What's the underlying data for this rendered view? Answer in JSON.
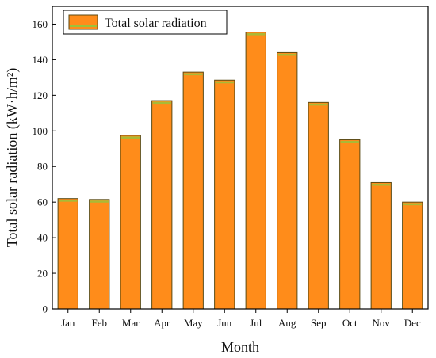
{
  "chart_data": {
    "type": "bar",
    "categories": [
      "Jan",
      "Feb",
      "Mar",
      "Apr",
      "May",
      "Jun",
      "Jul",
      "Aug",
      "Sep",
      "Oct",
      "Nov",
      "Dec"
    ],
    "series": [
      {
        "name": "Total solar radiation",
        "values": [
          62,
          61.5,
          97.5,
          117,
          133,
          128.5,
          155.5,
          144,
          116,
          95,
          71,
          60
        ]
      }
    ],
    "xlabel": "Month",
    "ylabel": "Total solar radiation (kW·h/m²)",
    "ylim": [
      0,
      170
    ],
    "yticks": [
      0,
      20,
      40,
      60,
      80,
      100,
      120,
      140,
      160
    ],
    "grid": false,
    "legend_position": "top-left",
    "colors": {
      "bar_fill": "#ff8c1a",
      "bar_stroke": "#5a4a14",
      "legend_box": "#ff8c1a",
      "highlight": "#9ac23c",
      "axis": "#000000"
    }
  }
}
